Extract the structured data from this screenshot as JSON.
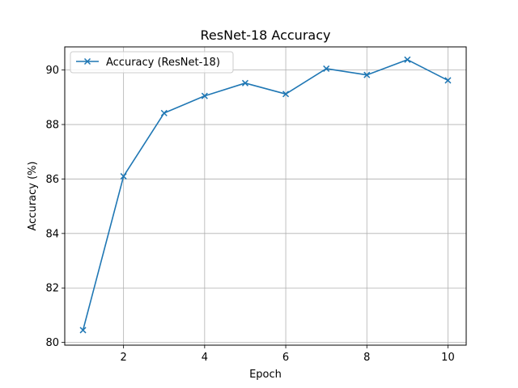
{
  "chart_data": {
    "type": "line",
    "title": "ResNet-18 Accuracy",
    "xlabel": "Epoch",
    "ylabel": "Accuracy (%)",
    "xlim": [
      0.55,
      10.45
    ],
    "ylim": [
      79.9,
      90.85
    ],
    "xticks": [
      2,
      4,
      6,
      8,
      10
    ],
    "yticks": [
      80,
      82,
      84,
      86,
      88,
      90
    ],
    "grid": true,
    "legend_position": "upper left",
    "marker": "x",
    "series": [
      {
        "name": "Accuracy (ResNet-18)",
        "color": "#1f77b4",
        "x": [
          1,
          2,
          3,
          4,
          5,
          6,
          7,
          8,
          9,
          10
        ],
        "y": [
          80.45,
          86.1,
          88.42,
          89.05,
          89.52,
          89.12,
          90.05,
          89.82,
          90.38,
          89.62
        ]
      }
    ]
  }
}
